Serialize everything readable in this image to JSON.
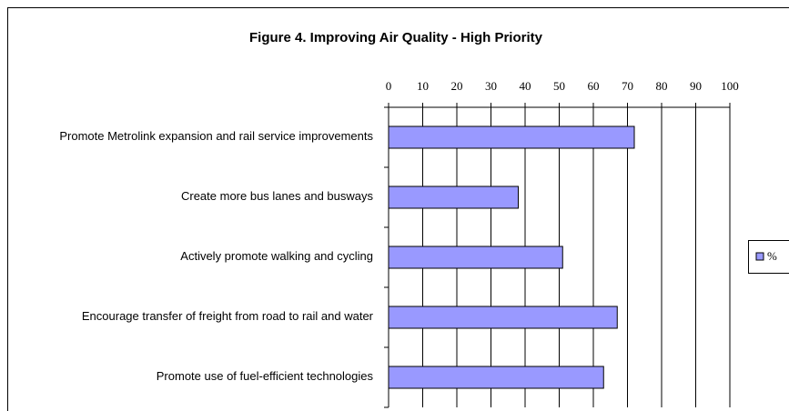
{
  "chart_data": {
    "type": "bar",
    "orientation": "horizontal",
    "title": "Figure 4. Improving Air Quality - High Priority",
    "categories": [
      "Promote Metrolink expansion and rail service improvements",
      "Create more bus lanes and busways",
      "Actively promote walking and cycling",
      "Encourage transfer of freight from road to rail and water",
      "Promote use of fuel-efficient technologies"
    ],
    "series": [
      {
        "name": "%",
        "color": "#9999ff",
        "values": [
          72,
          38,
          51,
          67,
          63
        ]
      }
    ],
    "xlim": [
      0,
      100
    ],
    "xticks": [
      0,
      10,
      20,
      30,
      40,
      50,
      60,
      70,
      80,
      90,
      100
    ],
    "grid": true,
    "legend": "right"
  }
}
